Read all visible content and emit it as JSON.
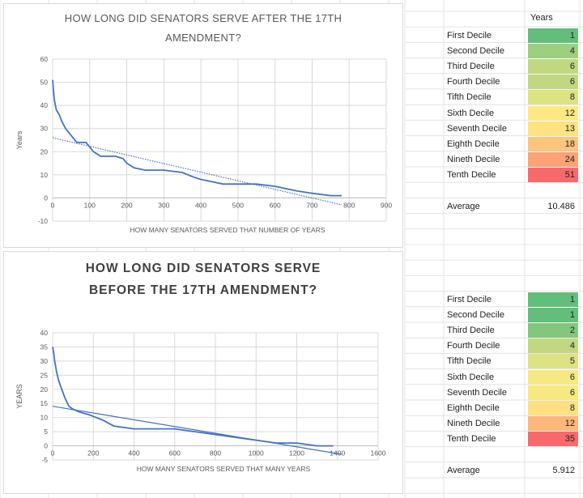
{
  "colors": {
    "line": "#4472c4",
    "gridline": "#d9d9d9",
    "axis_text": "#595959",
    "title_top": "#595959",
    "title_bottom": "#404040"
  },
  "chart_data": [
    {
      "type": "line",
      "title": "HOW LONG DID SENATORS SERVE AFTER THE 17TH AMENDMENT?",
      "title_lines": [
        "HOW LONG DID SENATORS SERVE AFTER THE 17TH",
        "AMENDMENT?"
      ],
      "xlabel": "HOW MANY SENATORS SERVED THAT NUMBER OF YEARS",
      "ylabel": "Years",
      "xlim": [
        0,
        900
      ],
      "ylim": [
        -10,
        60
      ],
      "xticks": [
        0,
        100,
        200,
        300,
        400,
        500,
        600,
        700,
        800,
        900
      ],
      "yticks": [
        -10,
        0,
        10,
        20,
        30,
        40,
        50,
        60
      ],
      "grid": true,
      "series": [
        {
          "style": "solid",
          "x": [
            0,
            2,
            5,
            10,
            18,
            25,
            35,
            50,
            65,
            90,
            100,
            110,
            130,
            150,
            170,
            190,
            200,
            220,
            250,
            300,
            350,
            380,
            400,
            430,
            460,
            500,
            550,
            600,
            630,
            660,
            700,
            750,
            780
          ],
          "y": [
            51,
            47,
            42,
            38,
            36,
            33,
            30,
            27,
            24,
            24,
            22,
            20,
            18,
            18,
            18,
            17,
            15,
            13,
            12,
            12,
            11,
            9,
            8,
            7,
            6,
            6,
            6,
            5,
            4,
            3,
            2,
            1,
            1
          ]
        },
        {
          "style": "dotted",
          "x": [
            0,
            780
          ],
          "y": [
            26,
            -3
          ]
        }
      ]
    },
    {
      "type": "line",
      "title": "HOW LONG DID SENATORS SERVE BEFORE THE 17TH AMENDMENT?",
      "title_lines": [
        "HOW LONG DID SENATORS SERVE",
        "BEFORE THE 17TH AMENDMENT?"
      ],
      "xlabel": "HOW MANY SENATORS SERVED THAT MANY YEARS",
      "ylabel": "YEARS",
      "xlim": [
        0,
        1600
      ],
      "ylim": [
        -5,
        40
      ],
      "xticks": [
        0,
        200,
        400,
        600,
        800,
        1000,
        1200,
        1400,
        1600
      ],
      "yticks": [
        -5,
        0,
        5,
        10,
        15,
        20,
        25,
        30,
        35,
        40
      ],
      "grid": true,
      "series": [
        {
          "style": "solid",
          "x": [
            0,
            5,
            10,
            20,
            30,
            45,
            60,
            80,
            100,
            130,
            180,
            250,
            300,
            400,
            500,
            600,
            700,
            800,
            900,
            1000,
            1100,
            1200,
            1300,
            1380
          ],
          "y": [
            35,
            33,
            30,
            26,
            23,
            20,
            17,
            14,
            13,
            12,
            11,
            9,
            7,
            6,
            6,
            6,
            5,
            4,
            3,
            2,
            1,
            1,
            0,
            0
          ]
        },
        {
          "style": "solid",
          "x": [
            0,
            1420
          ],
          "y": [
            14,
            -3
          ]
        }
      ]
    }
  ],
  "tables": [
    {
      "header": "Years",
      "rows": [
        {
          "label": "First Decile",
          "value": 1,
          "color": "#63be7b"
        },
        {
          "label": "Second Decile",
          "value": 4,
          "color": "#9ccf7f"
        },
        {
          "label": "Third Decile",
          "value": 6,
          "color": "#c0d981"
        },
        {
          "label": "Fourth Decile",
          "value": 6,
          "color": "#c0d981"
        },
        {
          "label": "Tifth Decile",
          "value": 8,
          "color": "#dde283"
        },
        {
          "label": "Sixth Decile",
          "value": 12,
          "color": "#fee883"
        },
        {
          "label": "Seventh Decile",
          "value": 13,
          "color": "#fee382"
        },
        {
          "label": "Eighth Decile",
          "value": 18,
          "color": "#fdc47d"
        },
        {
          "label": "Nineth Decile",
          "value": 24,
          "color": "#fba276"
        },
        {
          "label": "Tenth Decile",
          "value": 51,
          "color": "#f8696b"
        }
      ],
      "average_label": "Average",
      "average_value": "10.486"
    },
    {
      "rows": [
        {
          "label": "First Decile",
          "value": 1,
          "color": "#63be7b"
        },
        {
          "label": "Second Decile",
          "value": 1,
          "color": "#63be7b"
        },
        {
          "label": "Third Decile",
          "value": 2,
          "color": "#82c77d"
        },
        {
          "label": "Fourth Decile",
          "value": 4,
          "color": "#c0d981"
        },
        {
          "label": "Tifth Decile",
          "value": 5,
          "color": "#dde283"
        },
        {
          "label": "Sixth Decile",
          "value": 6,
          "color": "#f6e984"
        },
        {
          "label": "Seventh Decile",
          "value": 6,
          "color": "#f6e984"
        },
        {
          "label": "Eighth Decile",
          "value": 8,
          "color": "#fedf81"
        },
        {
          "label": "Nineth Decile",
          "value": 12,
          "color": "#fcb77a"
        },
        {
          "label": "Tenth Decile",
          "value": 35,
          "color": "#f8696b"
        }
      ],
      "average_label": "Average",
      "average_value": "5.912"
    }
  ]
}
